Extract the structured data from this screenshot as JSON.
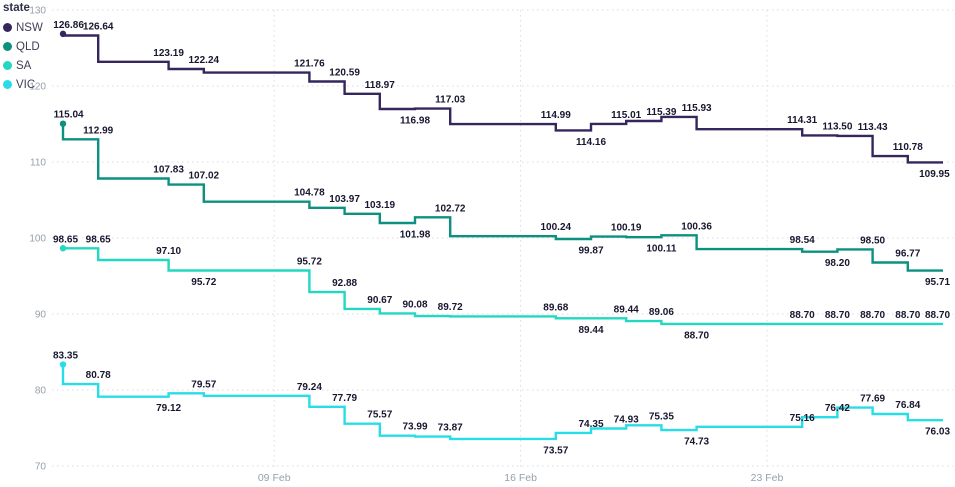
{
  "chart_data": {
    "type": "line",
    "step": "before",
    "title": "",
    "legend_title": "state",
    "legend_position": "top-left",
    "grid": "dotted",
    "background": "#ffffff",
    "label_color": "#17172f",
    "axis_color": "#97a0aa",
    "grid_color": "#d8dde3",
    "ylim": [
      70,
      130
    ],
    "y_ticks": [
      70,
      80,
      90,
      100,
      110,
      120,
      130
    ],
    "xlim_days": [
      0,
      25
    ],
    "x_days": [
      0,
      1,
      3,
      4,
      7,
      8,
      9,
      10,
      11,
      14,
      15,
      16,
      17,
      18,
      21,
      22,
      23,
      24,
      25
    ],
    "x_ticks": [
      {
        "day": 6,
        "label": "09 Feb"
      },
      {
        "day": 13,
        "label": "16 Feb"
      },
      {
        "day": 20,
        "label": "23 Feb"
      }
    ],
    "series": [
      {
        "name": "NSW",
        "color": "#35265e",
        "values": [
          126.86,
          126.64,
          123.19,
          122.24,
          121.76,
          120.59,
          118.97,
          116.98,
          117.03,
          114.99,
          114.16,
          115.01,
          115.39,
          115.93,
          114.31,
          113.5,
          113.43,
          110.78,
          109.95
        ],
        "label_sides": [
          "a",
          "a",
          "a",
          "a",
          "a",
          "a",
          "a",
          "b",
          "a",
          "a",
          "b",
          "a",
          "a",
          "a",
          "a",
          "a",
          "a",
          "a",
          "b"
        ]
      },
      {
        "name": "QLD",
        "color": "#0c9181",
        "values": [
          115.04,
          112.99,
          107.83,
          107.02,
          104.78,
          103.97,
          103.19,
          101.98,
          102.72,
          100.24,
          99.87,
          100.19,
          100.11,
          100.36,
          98.54,
          98.2,
          98.5,
          96.77,
          95.71
        ],
        "label_sides": [
          "a",
          "a",
          "a",
          "a",
          "a",
          "a",
          "a",
          "b",
          "a",
          "a",
          "b",
          "a",
          "b",
          "a",
          "a",
          "b",
          "a",
          "a",
          "b"
        ]
      },
      {
        "name": "SA",
        "color": "#23d8c0",
        "values": [
          98.65,
          98.65,
          97.1,
          95.72,
          95.72,
          92.88,
          90.67,
          90.08,
          89.72,
          89.68,
          89.44,
          89.44,
          89.06,
          88.7,
          88.7,
          88.7,
          88.7,
          88.7,
          88.7
        ],
        "label_sides": [
          "a",
          "a",
          "a",
          "b",
          "a",
          "a",
          "a",
          "a",
          "a",
          "a",
          "b",
          "a",
          "a",
          "b",
          "a",
          "a",
          "a",
          "a",
          "a"
        ]
      },
      {
        "name": "VIC",
        "color": "#28dde8",
        "values": [
          83.35,
          80.78,
          79.12,
          79.57,
          79.24,
          77.79,
          75.57,
          73.99,
          73.87,
          73.57,
          74.35,
          74.93,
          75.35,
          74.73,
          75.16,
          76.42,
          77.69,
          76.84,
          76.03
        ],
        "label_sides": [
          "a",
          "a",
          "b",
          "a",
          "a",
          "a",
          "a",
          "a",
          "a",
          "b",
          "a",
          "a",
          "a",
          "b",
          "a",
          "a",
          "a",
          "a",
          "b"
        ]
      }
    ]
  }
}
